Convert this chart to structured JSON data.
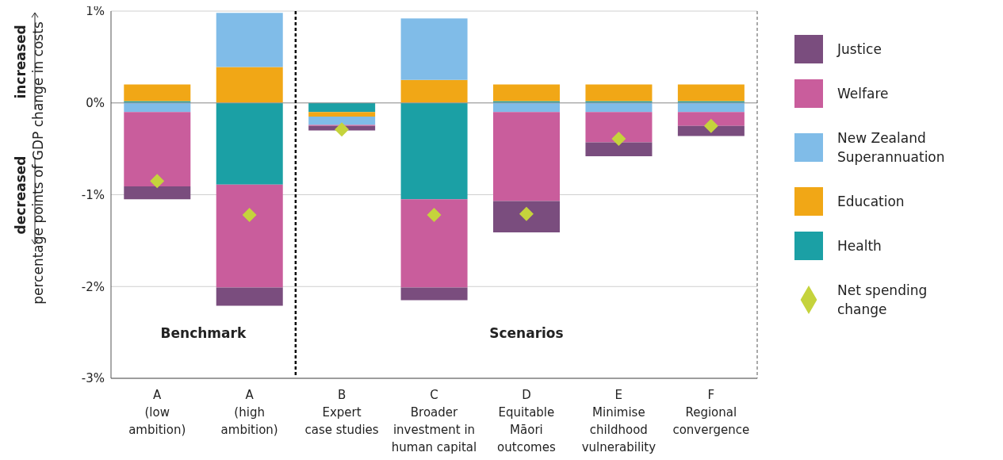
{
  "chart_data": {
    "type": "bar",
    "stacked": true,
    "ylabel": "percentage points of GDP change in costs",
    "categories": [
      "A\n(low\nambition)",
      "A\n(high\nambition)",
      "B\nExpert\ncase studies",
      "C\nBroader\ninvestment in\nhuman capital",
      "D\nEquitable\nMāori\noutcomes",
      "E\nMinimise\nchildhood\nvulnerability",
      "F\nRegional\nconvergence"
    ],
    "series": [
      {
        "name": "Health",
        "color": "#1ba0a5",
        "values": [
          0.02,
          -0.89,
          -0.1,
          -1.05,
          0.02,
          0.02,
          0.02
        ]
      },
      {
        "name": "Education",
        "color": "#f1a716",
        "values": [
          0.18,
          0.39,
          -0.05,
          0.25,
          0.18,
          0.18,
          0.18
        ]
      },
      {
        "name": "New Zealand Superannuation",
        "color": "#80bce8",
        "values": [
          -0.1,
          0.59,
          -0.09,
          0.67,
          -0.1,
          -0.1,
          -0.1
        ]
      },
      {
        "name": "Welfare",
        "color": "#c95d9c",
        "values": [
          -0.81,
          -1.12,
          -0.01,
          -0.96,
          -0.97,
          -0.33,
          -0.15
        ]
      },
      {
        "name": "Justice",
        "color": "#7a4d7e",
        "values": [
          -0.14,
          -0.2,
          -0.05,
          -0.14,
          -0.34,
          -0.15,
          -0.11
        ]
      },
      {
        "name": "Net spending change",
        "color": "#c5d33c",
        "type": "scatter",
        "values": [
          -0.85,
          -1.22,
          -0.29,
          -1.22,
          -1.21,
          -0.39,
          -0.25
        ]
      }
    ],
    "marker": "diamond",
    "ylim": [
      -3,
      1
    ],
    "yticks": [
      {
        "value": 1,
        "label": "1%"
      },
      {
        "value": 0,
        "label": "0%"
      },
      {
        "value": -1,
        "label": "-1%"
      },
      {
        "value": -2,
        "label": "-2%"
      },
      {
        "value": -3,
        "label": "-3%"
      }
    ],
    "grid": "y",
    "legend": "right",
    "annotations": [
      "Benchmark",
      "Scenarios",
      "increased",
      "decreased"
    ]
  }
}
